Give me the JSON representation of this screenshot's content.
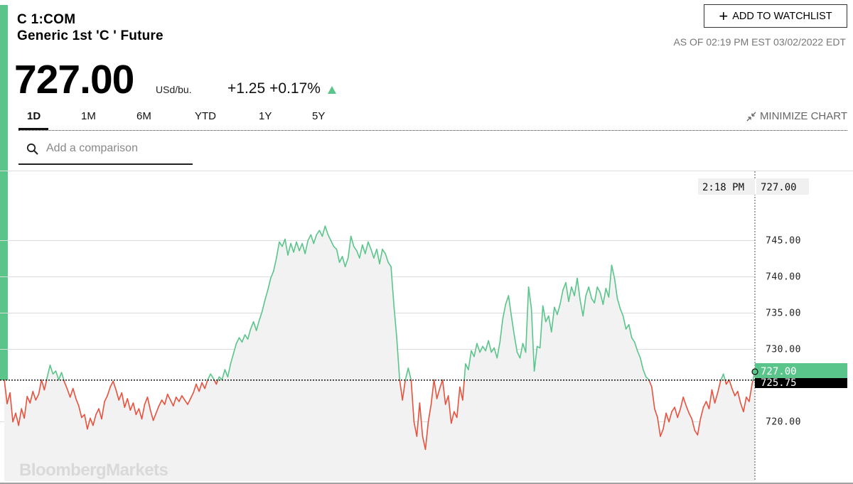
{
  "header": {
    "ticker": "C 1:COM",
    "name": "Generic 1st 'C ' Future",
    "price": "727.00",
    "unit": "USd/bu.",
    "change": "+1.25",
    "change_pct": "+0.17%",
    "change_direction": "up",
    "as_of": "AS OF 02:19 PM EST 03/02/2022 EDT"
  },
  "watchlist": {
    "label": "ADD TO WATCHLIST",
    "icon": "plus-icon"
  },
  "tabs": [
    {
      "label": "1D",
      "active": true
    },
    {
      "label": "1M",
      "active": false
    },
    {
      "label": "6M",
      "active": false
    },
    {
      "label": "YTD",
      "active": false
    },
    {
      "label": "1Y",
      "active": false
    },
    {
      "label": "5Y",
      "active": false
    }
  ],
  "minimize": {
    "label": "MINIMIZE CHART",
    "icon": "minimize-arrows-icon"
  },
  "compare": {
    "placeholder": "Add a comparison",
    "value": "",
    "icon": "search-icon"
  },
  "watermark": "BloombergMarkets",
  "colors": {
    "up": "#5ac58b",
    "down": "#e8513d",
    "accent": "#5ac58b",
    "fill": "#f2f2f2"
  },
  "chart_data": {
    "type": "line",
    "title": "",
    "xlabel": "",
    "ylabel": "",
    "ylim": [
      714.5,
      751.5
    ],
    "yticks": [
      "745.00",
      "740.00",
      "735.00",
      "730.00",
      "720.00"
    ],
    "ytick_values": [
      745,
      740,
      735,
      730,
      720
    ],
    "reference_line": {
      "value": 725.75,
      "label": "725.75",
      "style": "dotted"
    },
    "last_value": {
      "value": 727.0,
      "label": "727.00"
    },
    "crosshair": {
      "time": "2:18 PM",
      "value": "727.00"
    },
    "grid": true,
    "series": [
      {
        "colored_above_reference": "#5ac58b",
        "colored_below_reference": "#e8513d",
        "values": [
          725.8,
          722.5,
          724.0,
          720.0,
          721.2,
          719.5,
          721.8,
          720.5,
          723.5,
          722.6,
          724.2,
          723.0,
          723.8,
          725.8,
          724.4,
          726.2,
          727.8,
          726.6,
          727.0,
          725.8,
          726.8,
          725.5,
          724.5,
          723.4,
          724.6,
          723.2,
          722.2,
          720.6,
          721.0,
          719.0,
          720.5,
          719.5,
          721.0,
          721.8,
          720.4,
          722.8,
          723.6,
          724.8,
          725.6,
          724.4,
          723.0,
          724.0,
          722.0,
          723.2,
          721.6,
          722.6,
          721.0,
          721.8,
          720.4,
          722.4,
          723.4,
          721.6,
          720.2,
          721.2,
          722.2,
          723.0,
          722.4,
          723.8,
          723.0,
          722.2,
          723.4,
          722.8,
          723.6,
          723.0,
          722.4,
          723.2,
          724.0,
          725.2,
          724.2,
          725.4,
          724.6,
          725.8,
          726.6,
          726.0,
          725.2,
          726.2,
          725.8,
          727.2,
          726.2,
          728.0,
          729.4,
          730.8,
          731.6,
          731.0,
          732.0,
          731.4,
          732.8,
          733.8,
          732.6,
          734.0,
          735.2,
          736.8,
          738.2,
          739.8,
          740.8,
          742.6,
          744.8,
          744.2,
          745.2,
          743.0,
          744.6,
          743.4,
          744.8,
          743.6,
          744.6,
          743.2,
          745.0,
          745.8,
          744.6,
          745.8,
          746.4,
          745.6,
          747.0,
          745.8,
          745.0,
          744.2,
          743.8,
          742.0,
          742.8,
          741.4,
          742.6,
          745.6,
          744.2,
          743.6,
          742.6,
          744.4,
          743.2,
          744.8,
          743.8,
          742.6,
          743.8,
          741.8,
          743.8,
          743.2,
          742.0,
          741.4,
          736.0,
          731.5,
          725.8,
          723.0,
          725.8,
          727.4,
          725.8,
          720.0,
          718.0,
          722.6,
          718.0,
          716.2,
          720.0,
          722.4,
          725.8,
          723.2,
          724.6,
          725.8,
          722.4,
          723.6,
          719.8,
          721.4,
          720.6,
          724.8,
          723.0,
          728.0,
          727.2,
          729.8,
          729.0,
          730.8,
          729.6,
          730.4,
          729.8,
          731.2,
          729.6,
          730.2,
          728.8,
          731.0,
          734.2,
          736.2,
          737.4,
          734.6,
          732.0,
          729.6,
          728.8,
          730.8,
          729.6,
          738.6,
          735.6,
          727.0,
          730.4,
          730.2,
          736.0,
          733.8,
          734.6,
          732.4,
          735.8,
          734.8,
          736.2,
          738.2,
          739.2,
          736.6,
          738.6,
          737.4,
          739.8,
          736.8,
          734.6,
          737.4,
          738.6,
          737.0,
          736.4,
          738.6,
          737.8,
          736.2,
          738.4,
          737.2,
          741.6,
          739.8,
          737.0,
          735.6,
          734.6,
          732.8,
          733.4,
          731.6,
          731.0,
          729.8,
          728.8,
          727.2,
          726.2,
          725.8,
          724.8,
          721.8,
          720.6,
          718.0,
          719.0,
          721.2,
          720.0,
          721.4,
          722.0,
          720.6,
          721.8,
          723.4,
          722.2,
          721.2,
          720.4,
          718.8,
          718.2,
          720.4,
          722.0,
          722.8,
          721.8,
          724.4,
          722.6,
          724.0,
          725.6,
          726.6,
          725.2,
          725.8,
          724.6,
          723.6,
          724.2,
          722.6,
          721.4,
          723.4,
          722.8,
          725.2,
          727.0
        ]
      }
    ]
  }
}
